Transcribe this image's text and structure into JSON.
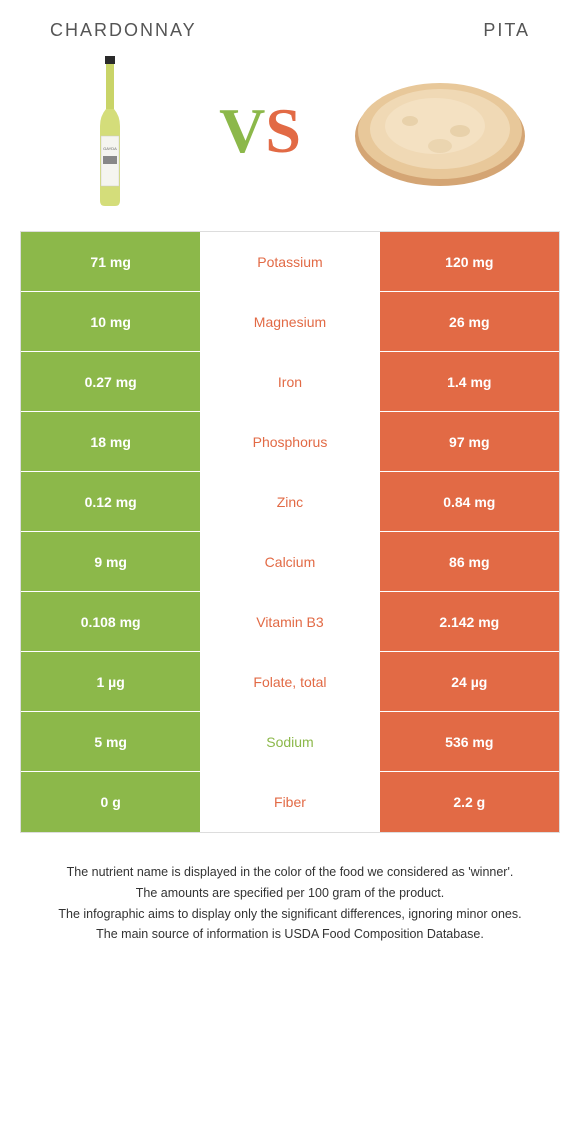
{
  "header": {
    "left": "CHARDONNAY",
    "right": "PITA"
  },
  "vs": {
    "v": "V",
    "s": "S"
  },
  "colors": {
    "green": "#8cb84a",
    "orange": "#e26a45"
  },
  "rows": [
    {
      "left": "71 mg",
      "label": "Potassium",
      "right": "120 mg",
      "winner": "orange"
    },
    {
      "left": "10 mg",
      "label": "Magnesium",
      "right": "26 mg",
      "winner": "orange"
    },
    {
      "left": "0.27 mg",
      "label": "Iron",
      "right": "1.4 mg",
      "winner": "orange"
    },
    {
      "left": "18 mg",
      "label": "Phosphorus",
      "right": "97 mg",
      "winner": "orange"
    },
    {
      "left": "0.12 mg",
      "label": "Zinc",
      "right": "0.84 mg",
      "winner": "orange"
    },
    {
      "left": "9 mg",
      "label": "Calcium",
      "right": "86 mg",
      "winner": "orange"
    },
    {
      "left": "0.108 mg",
      "label": "Vitamin B3",
      "right": "2.142 mg",
      "winner": "orange"
    },
    {
      "left": "1 µg",
      "label": "Folate, total",
      "right": "24 µg",
      "winner": "orange"
    },
    {
      "left": "5 mg",
      "label": "Sodium",
      "right": "536 mg",
      "winner": "green"
    },
    {
      "left": "0 g",
      "label": "Fiber",
      "right": "2.2 g",
      "winner": "orange"
    }
  ],
  "footer": {
    "l1": "The nutrient name is displayed in the color of the food we considered as 'winner'.",
    "l2": "The amounts are specified per 100 gram of the product.",
    "l3": "The infographic aims to display only the significant differences, ignoring minor ones.",
    "l4": "The main source of information is USDA Food Composition Database."
  }
}
